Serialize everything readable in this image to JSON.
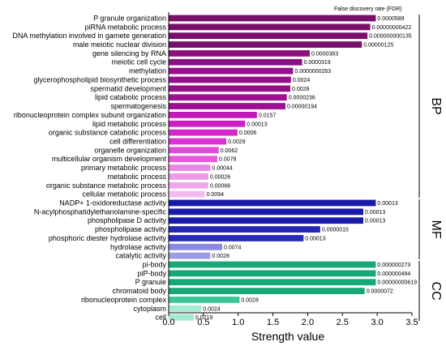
{
  "chart_data": {
    "type": "bar",
    "orientation": "horizontal",
    "xlabel": "Strength value",
    "xlim": [
      0,
      3.5
    ],
    "xticks": [
      "0.0",
      "0.5",
      "1.0",
      "1.5",
      "2.0",
      "2.5",
      "3.0",
      "3.5"
    ],
    "legend_title": "False discovery rate (FDR)",
    "groups": [
      {
        "name": "BP",
        "bars": [
          {
            "label": "P granule organization",
            "value": 2.98,
            "fdr": "0.0000589",
            "color": "#7a0f6a"
          },
          {
            "label": "piRNA metabolic process",
            "value": 2.9,
            "fdr": "0.00000000422",
            "color": "#7a0f6a"
          },
          {
            "label": "DNA methylation involved in gamete generation",
            "value": 2.86,
            "fdr": "0.000000000135",
            "color": "#7a0f6a"
          },
          {
            "label": "male meiotic nuclear division",
            "value": 2.78,
            "fdr": "0.00000125",
            "color": "#7a0f6a"
          },
          {
            "label": "gene silencing by RNA",
            "value": 2.03,
            "fdr": "0.0000383",
            "color": "#8c0f80"
          },
          {
            "label": "meiotic cell cycle",
            "value": 1.92,
            "fdr": "0.0000319",
            "color": "#8c0f80"
          },
          {
            "label": "methylation",
            "value": 1.79,
            "fdr": "0.0000000263",
            "color": "#960f8a"
          },
          {
            "label": "glycerophospholipid biosynthetic process",
            "value": 1.76,
            "fdr": "0.0024",
            "color": "#960f8a"
          },
          {
            "label": "spermatid development",
            "value": 1.75,
            "fdr": "0.0028",
            "color": "#960f8a"
          },
          {
            "label": "lipid catabolic process",
            "value": 1.7,
            "fdr": "0.0000236",
            "color": "#9e1092"
          },
          {
            "label": "spermatogenesis",
            "value": 1.68,
            "fdr": "0.00000194",
            "color": "#9e1092"
          },
          {
            "label": "ribonucleoprotein complex subunit organization",
            "value": 1.27,
            "fdr": "0.0157",
            "color": "#c21ab8"
          },
          {
            "label": "lipid metabolic process",
            "value": 1.1,
            "fdr": "0.00013",
            "color": "#cc1ec2"
          },
          {
            "label": "organic substance catabolic process",
            "value": 0.99,
            "fdr": "0.0006",
            "color": "#d526cb"
          },
          {
            "label": "cell differentiation",
            "value": 0.83,
            "fdr": "0.0029",
            "color": "#dc32d3"
          },
          {
            "label": "organelle organization",
            "value": 0.72,
            "fdr": "0.0062",
            "color": "#e24ada"
          },
          {
            "label": "multicellular organism development",
            "value": 0.7,
            "fdr": "0.0078",
            "color": "#e65ade"
          },
          {
            "label": "primary metabolic process",
            "value": 0.6,
            "fdr": "0.00044",
            "color": "#ea86e6"
          },
          {
            "label": "metabolic process",
            "value": 0.57,
            "fdr": "0.00026",
            "color": "#ed98e9"
          },
          {
            "label": "organic substance metabolic process",
            "value": 0.57,
            "fdr": "0.00066",
            "color": "#f0a8ec"
          },
          {
            "label": "cellular metabolic process",
            "value": 0.52,
            "fdr": "0.0094",
            "color": "#f3bcf0"
          }
        ]
      },
      {
        "name": "MF",
        "bars": [
          {
            "label": "NADP+ 1-oxidoreductase activity",
            "value": 2.98,
            "fdr": "0.00013",
            "color": "#1a1aa8"
          },
          {
            "label": "N-acylphosphatidylethanolamine-specific",
            "value": 2.8,
            "fdr": "0.00013",
            "color": "#1a1aa8"
          },
          {
            "label": "phospholipase D activity",
            "value": 2.8,
            "fdr": "0.00013",
            "color": "#1a1aa8"
          },
          {
            "label": "phospholipase activity",
            "value": 2.18,
            "fdr": "0.0000015",
            "color": "#2626b4"
          },
          {
            "label": "phosphoric diester hydrolase activity",
            "value": 1.94,
            "fdr": "0.00013",
            "color": "#2a2ab8"
          },
          {
            "label": "hydrolase activity",
            "value": 0.77,
            "fdr": "0.0074",
            "color": "#8a8ae0"
          },
          {
            "label": "catalytic activity",
            "value": 0.6,
            "fdr": "0.0028",
            "color": "#9c9ce6"
          }
        ]
      },
      {
        "name": "CC",
        "bars": [
          {
            "label": "pi-body",
            "value": 2.98,
            "fdr": "0.000000273",
            "color": "#17a878"
          },
          {
            "label": "piP-body",
            "value": 2.98,
            "fdr": "0.000000494",
            "color": "#17a878"
          },
          {
            "label": "P granule",
            "value": 2.98,
            "fdr": "0.00000000619",
            "color": "#17a878"
          },
          {
            "label": "chromatoid body",
            "value": 2.82,
            "fdr": "0.0000072",
            "color": "#17a878"
          },
          {
            "label": "ribonucleoprotein complex",
            "value": 1.02,
            "fdr": "0.0028",
            "color": "#3cc494"
          },
          {
            "label": "cytoplasm",
            "value": 0.47,
            "fdr": "0.0024",
            "color": "#a4ead4"
          },
          {
            "label": "cell",
            "value": 0.36,
            "fdr": "0.0219",
            "color": "#a4ead4"
          }
        ]
      }
    ]
  }
}
